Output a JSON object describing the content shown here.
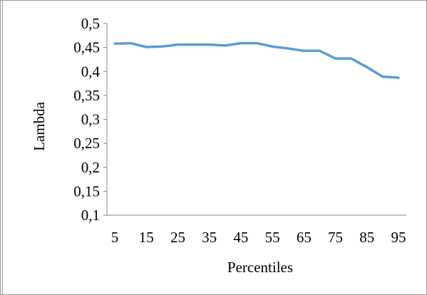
{
  "chart_data": {
    "type": "line",
    "xlabel": "Percentiles",
    "ylabel": "Lambda",
    "ylim": [
      0.1,
      0.5
    ],
    "yticks": [
      0.1,
      0.15,
      0.2,
      0.25,
      0.3,
      0.35,
      0.4,
      0.45,
      0.5
    ],
    "ytick_labels": [
      "0,1",
      "0,15",
      "0,2",
      "0,25",
      "0,3",
      "0,35",
      "0,4",
      "0,45",
      "0,5"
    ],
    "x": [
      5,
      10,
      15,
      20,
      25,
      30,
      35,
      40,
      45,
      50,
      55,
      60,
      65,
      70,
      75,
      80,
      85,
      90,
      95
    ],
    "xtick_labels": [
      "5",
      "15",
      "25",
      "35",
      "45",
      "55",
      "65",
      "75",
      "85",
      "95"
    ],
    "xtick_values": [
      5,
      15,
      25,
      35,
      45,
      55,
      65,
      75,
      85,
      95
    ],
    "series": [
      {
        "values": [
          0.458,
          0.459,
          0.451,
          0.452,
          0.456,
          0.456,
          0.456,
          0.454,
          0.459,
          0.459,
          0.452,
          0.448,
          0.443,
          0.443,
          0.427,
          0.427,
          0.409,
          0.389,
          0.387
        ],
        "color": "#5b9bd5"
      }
    ],
    "grid": false,
    "legend": "none"
  }
}
